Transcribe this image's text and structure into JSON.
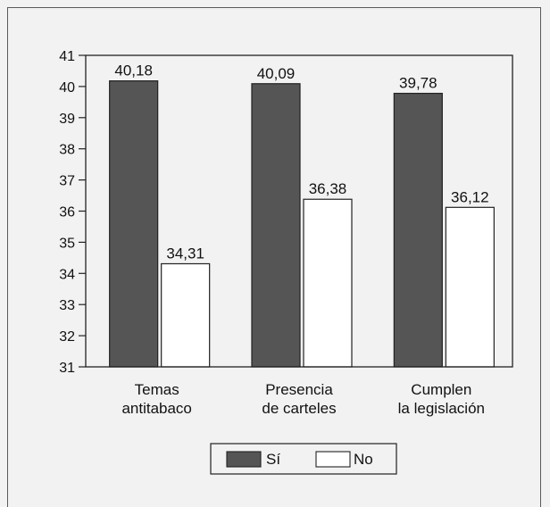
{
  "chart_data": {
    "type": "bar",
    "categories": [
      [
        "Temas",
        "antitabaco"
      ],
      [
        "Presencia",
        "de carteles"
      ],
      [
        "Cumplen",
        "la legislación"
      ]
    ],
    "series": [
      {
        "name": "Sí",
        "values": [
          40.18,
          40.09,
          39.78
        ],
        "labels": [
          "40,18",
          "40,09",
          "39,78"
        ],
        "color": "#555555"
      },
      {
        "name": "No",
        "values": [
          34.31,
          36.38,
          36.12
        ],
        "labels": [
          "34,31",
          "36,38",
          "36,12"
        ],
        "color": "#ffffff"
      }
    ],
    "ylim": [
      31,
      41
    ],
    "yticks": [
      "31",
      "32",
      "33",
      "34",
      "35",
      "36",
      "37",
      "38",
      "39",
      "40",
      "41"
    ],
    "legend_position": "bottom",
    "grid": false
  }
}
